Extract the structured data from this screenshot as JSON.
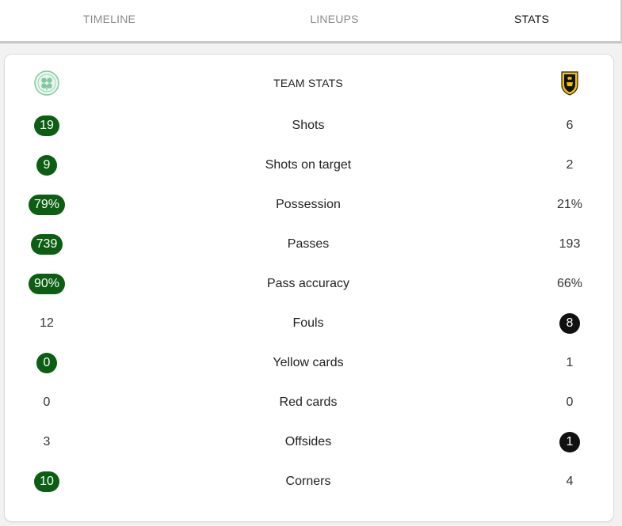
{
  "tabs": [
    {
      "label": "TIMELINE",
      "active": false
    },
    {
      "label": "LINEUPS",
      "active": false
    },
    {
      "label": "STATS",
      "active": true
    }
  ],
  "header": {
    "title": "TEAM STATS",
    "home_logo_icon": "celtic-crest-icon",
    "away_logo_icon": "livingston-crest-icon"
  },
  "colors": {
    "home_highlight": "#0b5e12",
    "away_highlight": "#111111"
  },
  "stats": [
    {
      "label": "Shots",
      "home": "19",
      "away": "6",
      "highlight": "home"
    },
    {
      "label": "Shots on target",
      "home": "9",
      "away": "2",
      "highlight": "home"
    },
    {
      "label": "Possession",
      "home": "79%",
      "away": "21%",
      "highlight": "home"
    },
    {
      "label": "Passes",
      "home": "739",
      "away": "193",
      "highlight": "home"
    },
    {
      "label": "Pass accuracy",
      "home": "90%",
      "away": "66%",
      "highlight": "home"
    },
    {
      "label": "Fouls",
      "home": "12",
      "away": "8",
      "highlight": "away"
    },
    {
      "label": "Yellow cards",
      "home": "0",
      "away": "1",
      "highlight": "home"
    },
    {
      "label": "Red cards",
      "home": "0",
      "away": "0",
      "highlight": "none"
    },
    {
      "label": "Offsides",
      "home": "3",
      "away": "1",
      "highlight": "away"
    },
    {
      "label": "Corners",
      "home": "10",
      "away": "4",
      "highlight": "home"
    }
  ]
}
